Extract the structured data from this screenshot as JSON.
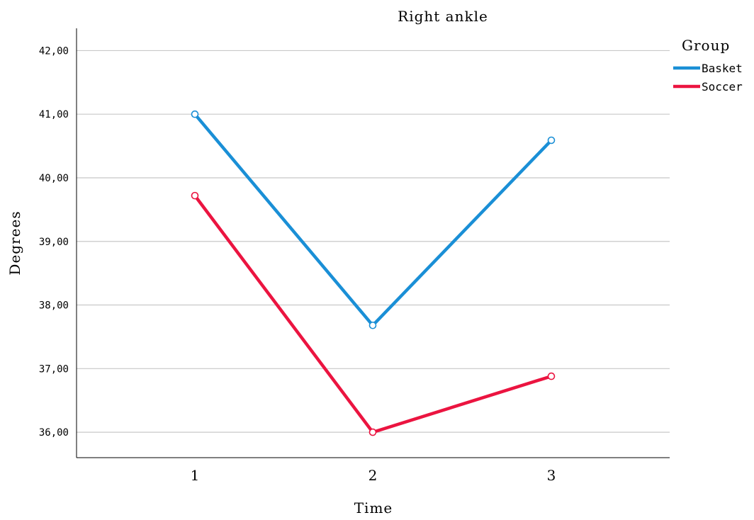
{
  "chart_data": {
    "type": "line",
    "title": "Right ankle",
    "xlabel": "Time",
    "ylabel": "Degrees",
    "categories": [
      "1",
      "2",
      "3"
    ],
    "ylim": [
      35.6,
      42.35
    ],
    "yticks": [
      36,
      37,
      38,
      39,
      40,
      41,
      42
    ],
    "ytick_labels": [
      "36,00",
      "37,00",
      "38,00",
      "39,00",
      "40,00",
      "41,00",
      "42,00"
    ],
    "grid": true,
    "legend": {
      "title": "Group",
      "placement": "top-right"
    },
    "series": [
      {
        "name": "Basket",
        "color": "#1a8fd6",
        "values": [
          41.0,
          37.68,
          40.59
        ]
      },
      {
        "name": "Soccer",
        "color": "#eb1440",
        "values": [
          39.72,
          36.0,
          36.88
        ]
      }
    ]
  }
}
